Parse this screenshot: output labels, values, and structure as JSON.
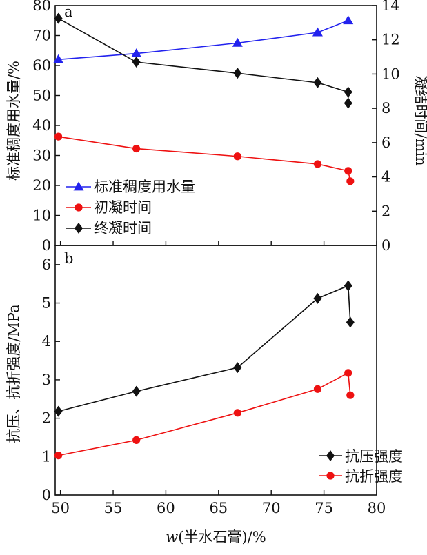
{
  "chart_data": [
    {
      "type": "line",
      "panel_label": "a",
      "ylabel_left": "标准稠度用水量/%",
      "ylabel_right": "凝结时间/min",
      "ylim_left": [
        0,
        80
      ],
      "ylim_right": [
        0,
        14
      ],
      "yticks_left": [
        "0",
        "10",
        "20",
        "30",
        "40",
        "50",
        "60",
        "70",
        "80"
      ],
      "yticks_right": [
        "0",
        "2",
        "4",
        "6",
        "8",
        "10",
        "12",
        "14"
      ],
      "xlim": [
        49.5,
        80
      ],
      "legend_position": "bottom-left",
      "series": [
        {
          "name": "标准稠度用水量",
          "axis": "left",
          "color": "#2222ee",
          "marker": "triangle",
          "x": [
            49.8,
            57.2,
            66.8,
            74.4,
            77.3
          ],
          "y": [
            62.0,
            64.0,
            67.5,
            71.0,
            75.0
          ]
        },
        {
          "name": "初凝时间",
          "axis": "right",
          "color": "#ee1111",
          "marker": "circle",
          "x": [
            49.8,
            57.2,
            66.8,
            74.4,
            77.3,
            77.5
          ],
          "y": [
            6.35,
            5.65,
            5.2,
            4.75,
            4.35,
            3.75
          ]
        },
        {
          "name": "终凝时间",
          "axis": "right",
          "color": "#111111",
          "marker": "diamond",
          "x": [
            49.8,
            57.2,
            66.8,
            74.4,
            77.3,
            77.3
          ],
          "y": [
            13.25,
            10.7,
            10.05,
            9.5,
            8.95,
            8.3
          ]
        }
      ]
    },
    {
      "type": "line",
      "panel_label": "b",
      "ylabel": "抗压、抗折强度/MPa",
      "ylim": [
        0,
        6.5
      ],
      "yticks": [
        "0",
        "1",
        "2",
        "3",
        "4",
        "5",
        "6"
      ],
      "xlim": [
        49.5,
        80
      ],
      "xticks": [
        "50",
        "55",
        "60",
        "65",
        "70",
        "75",
        "80"
      ],
      "xlabel_italic": "w",
      "xlabel_rest": "(半水石膏)/%",
      "legend_position": "bottom-right",
      "series": [
        {
          "name": "抗压强度",
          "color": "#111111",
          "marker": "diamond",
          "x": [
            49.8,
            57.2,
            66.8,
            74.4,
            77.3,
            77.5
          ],
          "y": [
            2.18,
            2.7,
            3.32,
            5.12,
            5.45,
            4.5
          ]
        },
        {
          "name": "抗折强度",
          "color": "#ee1111",
          "marker": "circle",
          "x": [
            49.8,
            57.2,
            66.8,
            74.4,
            77.3,
            77.5
          ],
          "y": [
            1.03,
            1.43,
            2.14,
            2.76,
            3.18,
            2.6
          ]
        }
      ]
    }
  ]
}
